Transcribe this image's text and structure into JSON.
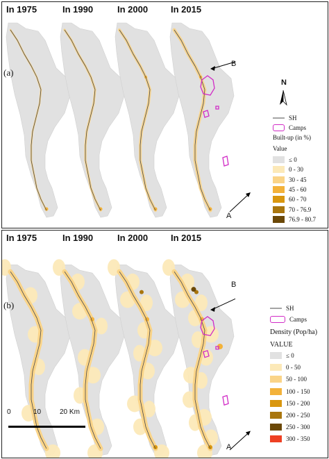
{
  "years": [
    "In 1975",
    "In 1990",
    "In 2000",
    "In 2015"
  ],
  "panel_a": {
    "label": "(a)",
    "legend": {
      "sh_label": "SH",
      "camps_label": "Camps",
      "title": "Built-up (in %)",
      "subtitle": "Value",
      "classes": [
        {
          "label": "≤ 0",
          "color": "#e1e1e1"
        },
        {
          "label": "0 - 30",
          "color": "#fce9b8"
        },
        {
          "label": "30 - 45",
          "color": "#fad488"
        },
        {
          "label": "45 - 60",
          "color": "#f3b23a"
        },
        {
          "label": "60 - 70",
          "color": "#d9970f"
        },
        {
          "label": "70 - 76.9",
          "color": "#a9760e"
        },
        {
          "label": "76.9 - 80.7",
          "color": "#6b4807"
        }
      ]
    }
  },
  "panel_b": {
    "label": "(b)",
    "legend": {
      "sh_label": "SH",
      "camps_label": "Camps",
      "title": "Density (Pop/ha)",
      "subtitle": "VALUE",
      "classes": [
        {
          "label": "≤ 0",
          "color": "#e1e1e1"
        },
        {
          "label": "0 - 50",
          "color": "#fce9b8"
        },
        {
          "label": "50 - 100",
          "color": "#fad488"
        },
        {
          "label": "100 - 150",
          "color": "#f3b23a"
        },
        {
          "label": "150 - 200",
          "color": "#d9970f"
        },
        {
          "label": "200 - 250",
          "color": "#a9760e"
        },
        {
          "label": "250 - 300",
          "color": "#6b4807"
        },
        {
          "label": "300 - 350",
          "color": "#ee4023"
        }
      ]
    }
  },
  "north_label": "N",
  "point_a": "A",
  "point_b": "B",
  "scale": {
    "ticks": [
      "0",
      "10",
      "20 Km"
    ]
  },
  "colors": {
    "land": "#e1e1e1",
    "camps": "#d12bc6",
    "road": "#4a4a4a"
  }
}
